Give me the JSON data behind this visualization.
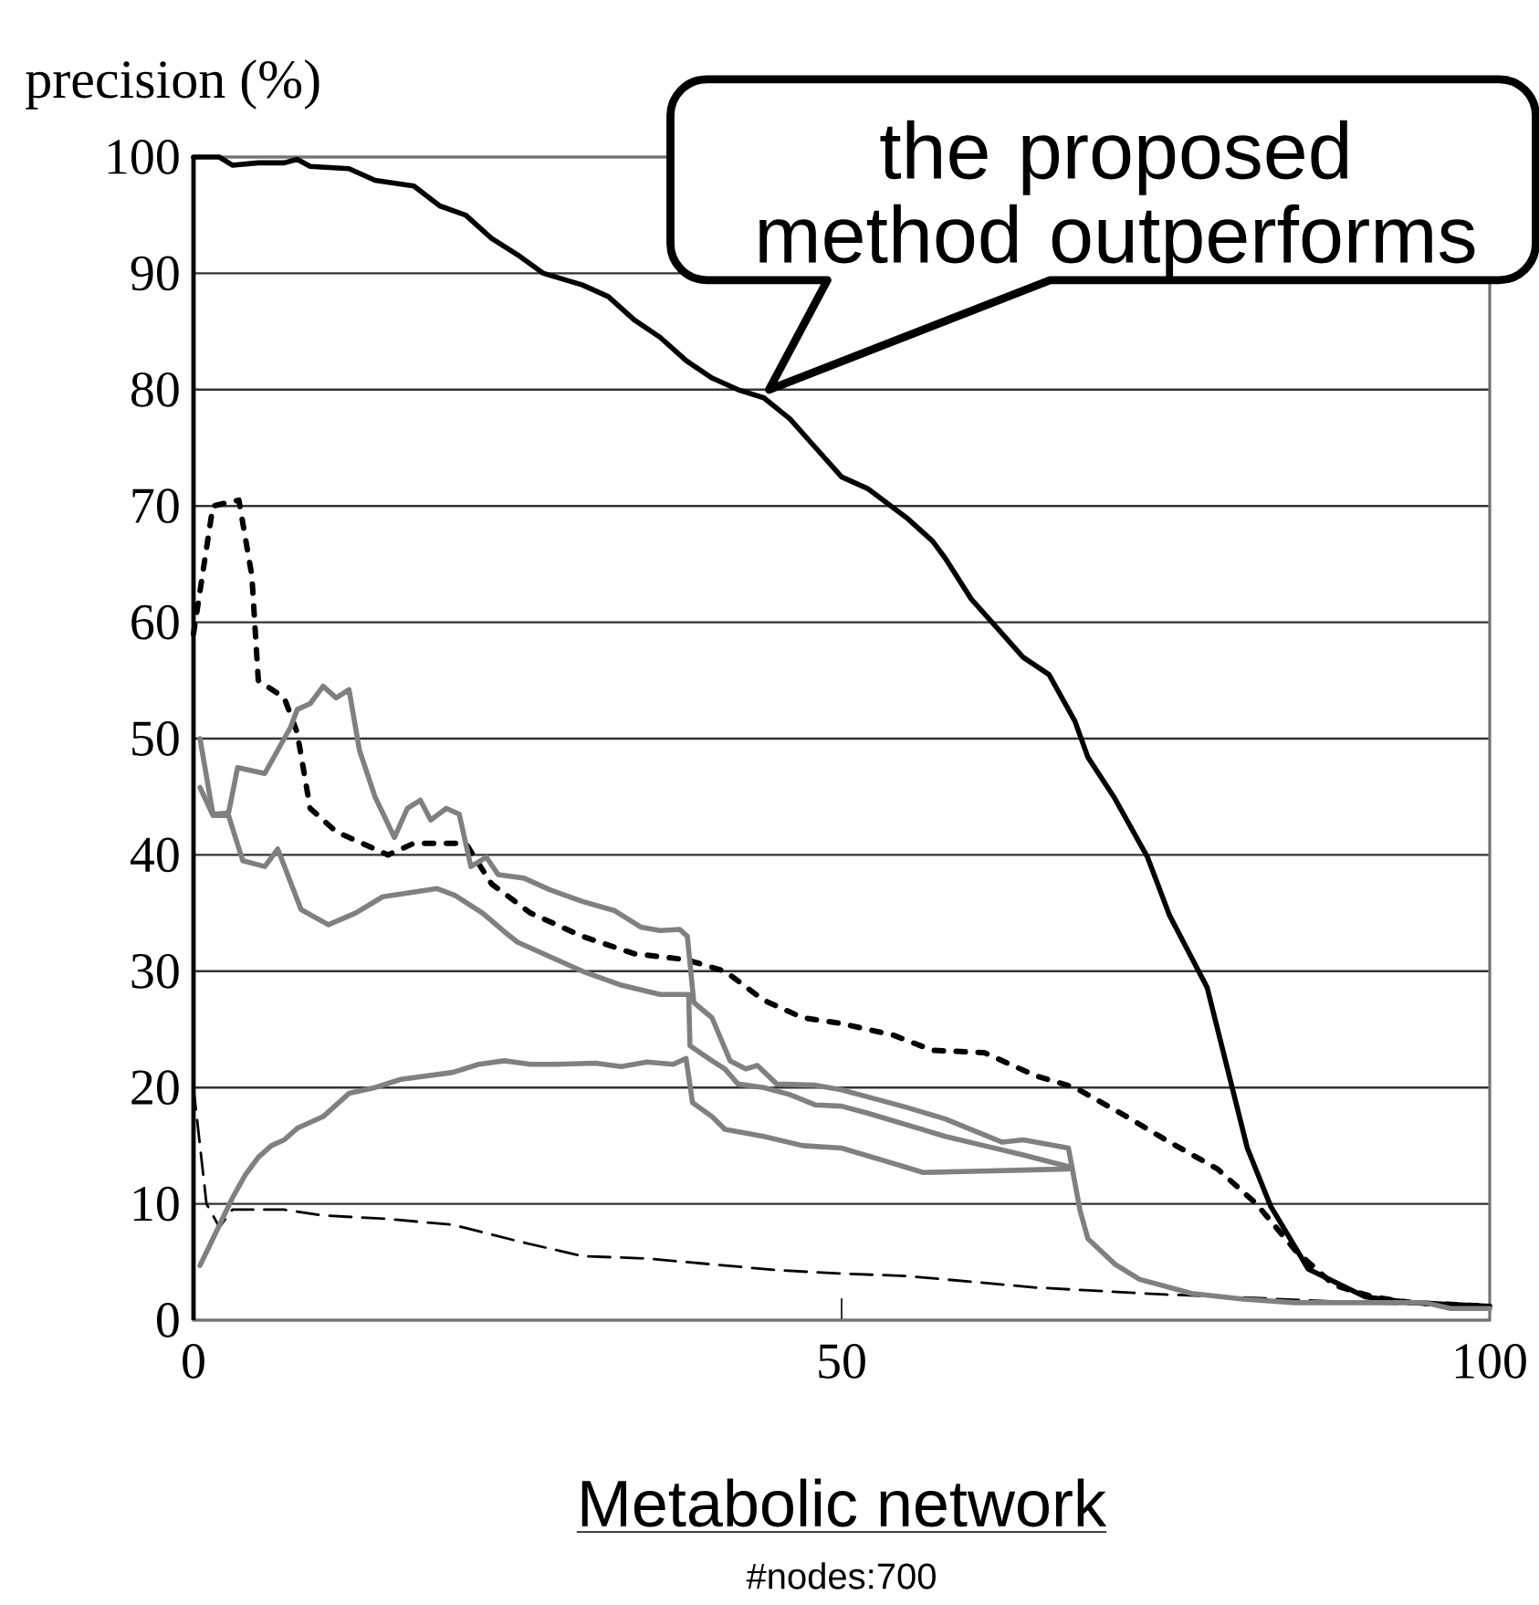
{
  "chart_data": {
    "type": "line",
    "xlabel": "Metabolic network",
    "subtitle": "#nodes:700",
    "ylabel": "precision (%)",
    "annotations": [
      {
        "text": "the proposed method outperforms",
        "x": 44.4,
        "y": 80
      }
    ],
    "xlim": [
      0,
      100
    ],
    "ylim": [
      0,
      100
    ],
    "xticks": [
      0,
      50,
      100
    ],
    "yticks": [
      0,
      10,
      20,
      30,
      40,
      50,
      60,
      70,
      80,
      90,
      100
    ],
    "grid": "y",
    "series": [
      {
        "color": "#000000",
        "line_style": "solid",
        "x": [
          0,
          2,
          3,
          5,
          7,
          8,
          9,
          12,
          14,
          17,
          19,
          21,
          23,
          25,
          27,
          30,
          32,
          34,
          36,
          38,
          40,
          42,
          44,
          46,
          48,
          50,
          52,
          55,
          57,
          58,
          60,
          62,
          64,
          66,
          68,
          69,
          71,
          73.6,
          75.3,
          78.2,
          80.2,
          81.3,
          83.1,
          86,
          90.4,
          94,
          100
        ],
        "values": [
          100,
          100,
          99.3,
          99.5,
          99.5,
          99.8,
          99.2,
          99,
          98,
          97.5,
          95.8,
          95,
          93,
          91.6,
          90,
          89,
          88,
          86,
          84.5,
          82.5,
          81,
          80,
          79.3,
          77.5,
          75,
          72.5,
          71.5,
          69,
          67,
          65.5,
          62,
          59.5,
          57,
          55.5,
          51.5,
          48.4,
          45,
          39.8,
          34.8,
          28.6,
          19.7,
          14.8,
          9.8,
          4.4,
          2,
          1.5,
          1.2
        ]
      },
      {
        "color": "#000000",
        "line_style": "dotted",
        "x": [
          0,
          1.5,
          3.5,
          4.5,
          5,
          7,
          8,
          9,
          11,
          13,
          15,
          17,
          21,
          23,
          26,
          30,
          34,
          38,
          41,
          44,
          47,
          50,
          54,
          57,
          61,
          65,
          68,
          72,
          75,
          79,
          82,
          85,
          88,
          91,
          94,
          100
        ],
        "values": [
          59,
          70,
          70.5,
          64,
          55,
          53.5,
          50.5,
          44,
          42,
          41,
          40,
          41,
          41,
          37.5,
          35,
          33,
          31.5,
          31,
          30,
          27.5,
          26,
          25.5,
          24.5,
          23.2,
          23,
          21,
          20,
          17.5,
          15.5,
          13,
          10,
          6,
          3,
          2,
          1.5,
          1.2
        ]
      },
      {
        "color": "#000000",
        "line_style": "dashed",
        "x": [
          0,
          1,
          2,
          3,
          7,
          10,
          15,
          20,
          25,
          30,
          35,
          40,
          45,
          50,
          55,
          60,
          65,
          70,
          75,
          80,
          90,
          100
        ],
        "values": [
          20,
          10,
          8,
          9.5,
          9.5,
          9,
          8.7,
          8.2,
          6.8,
          5.5,
          5.3,
          4.8,
          4.3,
          4,
          3.8,
          3.3,
          2.8,
          2.5,
          2.2,
          2,
          1.5,
          1.2
        ]
      },
      {
        "color": "#808080",
        "line_style": "solid",
        "x": [
          0.5,
          1.5,
          2.7,
          3.4,
          5.5,
          6.5,
          7.5,
          8,
          9,
          10,
          11,
          12,
          12.8,
          14,
          15.5,
          16.5,
          17.5,
          18.3,
          19.5,
          20.5,
          21.4,
          22.6,
          23.5,
          25.5,
          27.5,
          30,
          32.5,
          34.5,
          36,
          37.5,
          38.1,
          38.6,
          40,
          41.4,
          42.6,
          43.5,
          45,
          48,
          50,
          52,
          55,
          58,
          62.4,
          64,
          67.5,
          68.4,
          69,
          71.1,
          73,
          77,
          81,
          85,
          90,
          95,
          97,
          100
        ],
        "values": [
          50,
          43.5,
          43.6,
          47.5,
          47,
          49,
          51,
          52.5,
          53,
          54.5,
          53.5,
          54.2,
          49,
          45,
          41.5,
          44,
          44.7,
          43,
          44,
          43.5,
          39,
          39.8,
          38.3,
          38,
          37,
          36,
          35.2,
          33.8,
          33.5,
          33.6,
          33,
          27.3,
          26,
          22.3,
          21.6,
          21.9,
          20.3,
          20.2,
          19.8,
          19.2,
          18.3,
          17.3,
          15.3,
          15.5,
          14.8,
          9.4,
          7,
          4.8,
          3.5,
          2.3,
          1.8,
          1.5,
          1.5,
          1.5,
          1,
          1
        ]
      },
      {
        "color": "#808080",
        "line_style": "solid",
        "x": [
          0.5,
          1.5,
          2.7,
          3.8,
          5.5,
          6.5,
          8.3,
          10.4,
          12.5,
          14.6,
          18.8,
          20.2,
          22.3,
          24.2,
          25,
          30,
          33,
          36,
          38.2,
          38.3,
          40,
          41,
          42,
          44,
          46,
          48,
          50,
          52,
          55,
          58,
          61,
          64,
          67.5
        ],
        "values": [
          45.8,
          43.4,
          43.4,
          39.5,
          39,
          40.5,
          35.3,
          34,
          35,
          36.4,
          37.1,
          36.5,
          35,
          33.2,
          32.5,
          30,
          28.8,
          28,
          28,
          23.6,
          22.3,
          21.6,
          20.3,
          20,
          19.4,
          18.5,
          18.4,
          17.8,
          16.8,
          15.8,
          15,
          14.2,
          13.2
        ]
      },
      {
        "color": "#808080",
        "line_style": "solid",
        "x": [
          0.5,
          1.5,
          3,
          4,
          5,
          6,
          7,
          8,
          10,
          12,
          14,
          16,
          20,
          22,
          24,
          26,
          28,
          31,
          33,
          35,
          37,
          38,
          38.5,
          40,
          41,
          44,
          47,
          50,
          53,
          56.3,
          60,
          64,
          67.5
        ],
        "values": [
          4.7,
          7,
          10.5,
          12.5,
          14,
          15,
          15.5,
          16.5,
          17.5,
          19.5,
          20,
          20.7,
          21.3,
          22,
          22.3,
          22,
          22,
          22.1,
          21.8,
          22.2,
          22,
          22.5,
          18.7,
          17.5,
          16.4,
          15.8,
          15,
          14.8,
          13.8,
          12.7,
          12.8,
          12.9,
          13
        ]
      }
    ]
  }
}
